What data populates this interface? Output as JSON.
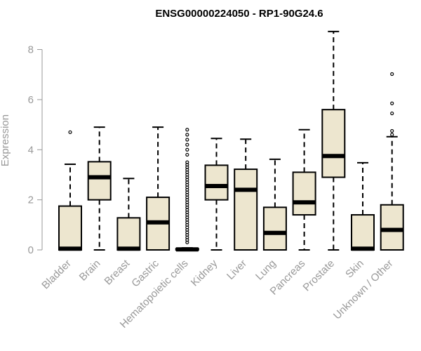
{
  "chart_data": {
    "type": "boxplot",
    "title": "ENSG00000224050 - RP1-90G24.6",
    "xlabel": "",
    "ylabel": "Expression",
    "ylim": [
      0,
      8.8
    ],
    "yticks": [
      0,
      2,
      4,
      6,
      8
    ],
    "box_fill": "#ede6cf",
    "box_stroke": "#000000",
    "grid": false,
    "categories": [
      "Bladder",
      "Brain",
      "Breast",
      "Gastric",
      "Hematopoietic cells",
      "Kidney",
      "Liver",
      "Lung",
      "Pancreas",
      "Prostate",
      "Skin",
      "Unknown / Other"
    ],
    "boxes": [
      {
        "name": "Bladder",
        "min": 0,
        "q1": 0,
        "median": 0.05,
        "q3": 1.75,
        "max": 3.42,
        "outliers": [
          4.7
        ]
      },
      {
        "name": "Brain",
        "min": 0,
        "q1": 2.0,
        "median": 2.9,
        "q3": 3.52,
        "max": 4.9,
        "outliers": []
      },
      {
        "name": "Breast",
        "min": 0,
        "q1": 0,
        "median": 0.05,
        "q3": 1.28,
        "max": 2.85,
        "outliers": []
      },
      {
        "name": "Gastric",
        "min": 0,
        "q1": 0,
        "median": 1.1,
        "q3": 2.1,
        "max": 4.9,
        "outliers": []
      },
      {
        "name": "Hematopoietic cells",
        "min": 0,
        "q1": 0,
        "median": 0.02,
        "q3": 0.05,
        "max": 0.08,
        "outliers": [
          0.3,
          0.4,
          0.5,
          0.6,
          0.7,
          0.8,
          0.9,
          1.0,
          1.1,
          1.2,
          1.3,
          1.4,
          1.5,
          1.6,
          1.7,
          1.8,
          1.9,
          2.0,
          2.1,
          2.2,
          2.3,
          2.4,
          2.5,
          2.6,
          2.7,
          2.8,
          2.9,
          3.0,
          3.1,
          3.2,
          3.3,
          3.4,
          3.5,
          3.8,
          4.0,
          4.2,
          4.4,
          4.6,
          4.8
        ]
      },
      {
        "name": "Kidney",
        "min": 0,
        "q1": 2.0,
        "median": 2.55,
        "q3": 3.38,
        "max": 4.45,
        "outliers": []
      },
      {
        "name": "Liver",
        "min": 0,
        "q1": 0,
        "median": 2.4,
        "q3": 3.22,
        "max": 4.42,
        "outliers": []
      },
      {
        "name": "Lung",
        "min": 0,
        "q1": 0,
        "median": 0.68,
        "q3": 1.7,
        "max": 3.62,
        "outliers": []
      },
      {
        "name": "Pancreas",
        "min": 0,
        "q1": 1.4,
        "median": 1.9,
        "q3": 3.1,
        "max": 4.8,
        "outliers": []
      },
      {
        "name": "Prostate",
        "min": 0,
        "q1": 2.9,
        "median": 3.75,
        "q3": 5.6,
        "max": 8.72,
        "outliers": []
      },
      {
        "name": "Skin",
        "min": 0,
        "q1": 0,
        "median": 0.05,
        "q3": 1.4,
        "max": 3.48,
        "outliers": []
      },
      {
        "name": "Unknown / Other",
        "min": 0,
        "q1": 0,
        "median": 0.8,
        "q3": 1.8,
        "max": 4.52,
        "outliers": [
          4.6,
          4.75,
          5.45,
          5.85,
          7.02
        ]
      }
    ]
  }
}
